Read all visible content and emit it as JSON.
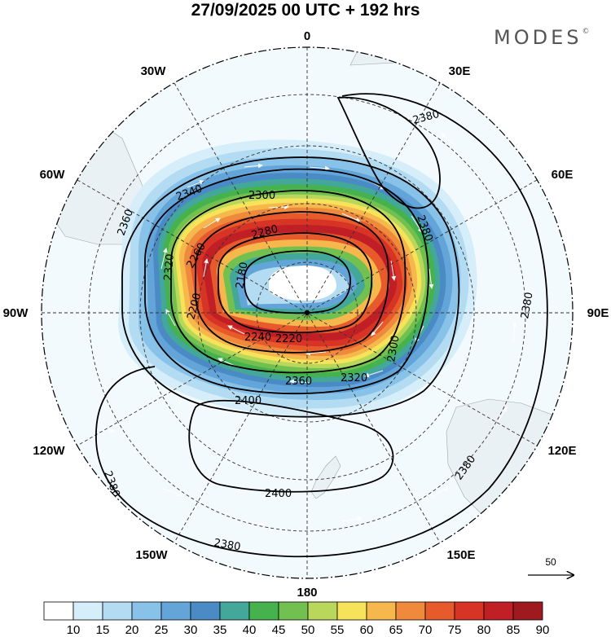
{
  "title": "27/09/2025  00 UTC  + 192 hrs",
  "brand": "MODES",
  "brand_mark": "©",
  "longitude_labels": {
    "n": "0",
    "nne": "30E",
    "ene": "60E",
    "e": "90E",
    "ese": "120E",
    "sse": "150E",
    "s": "180",
    "ssw": "150W",
    "wsw": "120W",
    "w": "90W",
    "wnw": "60W",
    "nnw": "30W"
  },
  "contours": {
    "c2380_ne": "2380",
    "c2380_e": "2380",
    "c2380_se": "2380",
    "c2380_sw": "2380",
    "c2380_s": "2380",
    "c2360_w": "2360",
    "c2360_s": "2360",
    "c2340": "2340",
    "c2300": "2300",
    "c2280": "2280",
    "c2260": "2260",
    "c2220": "2220",
    "c2200": "2200",
    "c2180": "2180",
    "c2240": "2240",
    "c2320": "2320",
    "c2400_a": "2400",
    "c2400_b": "2400",
    "c2380_inner": "2380"
  },
  "reference_vector": {
    "label": "50"
  },
  "colorbar": {
    "colors": [
      "#ffffff",
      "#d6eef9",
      "#b3dcf3",
      "#89c2e8",
      "#63a5d9",
      "#4a8bc6",
      "#43a79a",
      "#46b24e",
      "#72c04f",
      "#b9d75a",
      "#f6e35a",
      "#f6b74c",
      "#ef8a3c",
      "#e65a2c",
      "#d83426",
      "#c01f26",
      "#9e1a1e"
    ],
    "labels": [
      "10",
      "15",
      "20",
      "25",
      "30",
      "35",
      "40",
      "45",
      "50",
      "55",
      "60",
      "65",
      "70",
      "75",
      "80",
      "85",
      "90"
    ]
  }
}
